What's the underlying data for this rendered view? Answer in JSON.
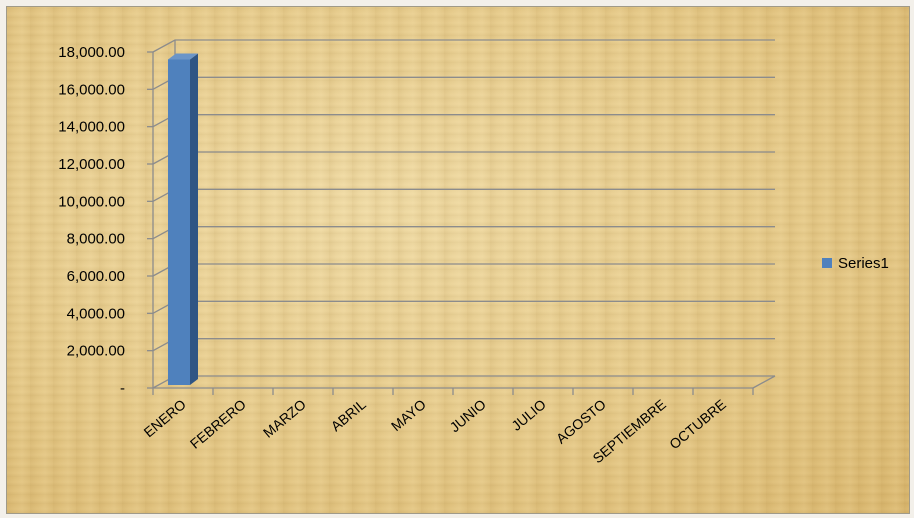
{
  "chart_data": {
    "type": "bar",
    "categories": [
      "ENERO",
      "FEBRERO",
      "MARZO",
      "ABRIL",
      "MAYO",
      "JUNIO",
      "JULIO",
      "AGOSTO",
      "SEPTIEMBRE",
      "OCTUBRE"
    ],
    "series": [
      {
        "name": "Series1",
        "values": [
          17600,
          0,
          0,
          0,
          0,
          0,
          0,
          0,
          0,
          0
        ],
        "color": "#4f81bd"
      }
    ],
    "ylim": [
      0,
      18000
    ],
    "yticks": [
      0,
      2000,
      4000,
      6000,
      8000,
      10000,
      12000,
      14000,
      16000,
      18000
    ],
    "ytick_labels": [
      "-",
      "2,000.00",
      "4,000.00",
      "6,000.00",
      "8,000.00",
      "10,000.00",
      "12,000.00",
      "14,000.00",
      "16,000.00",
      "18,000.00"
    ],
    "grid": true,
    "legend_position": "right",
    "style": "3d-column"
  }
}
